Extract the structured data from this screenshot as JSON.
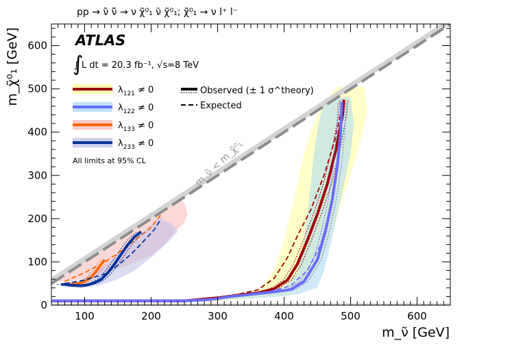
{
  "header": {
    "process": "pp → ν̃ ν̃̄ → ν χ̃⁰₁ ν̄ χ̃⁰₁;   χ̃⁰₁ → ν l⁺ l⁻"
  },
  "experiment": {
    "name": "ATLAS",
    "lumi_label": "∫ L dt = 20.3 fb⁻¹, √s=8 TeV"
  },
  "chart_data": {
    "type": "line",
    "title": "pp → ν̃ ν̃̄ → ν χ̃⁰₁ ν̄ χ̃⁰₁;   χ̃⁰₁ → ν l⁺ l⁻",
    "xlabel": "m_ν̃ [GeV]",
    "ylabel": "m_χ̃⁰₁ [GeV]",
    "xlim": [
      50,
      650
    ],
    "ylim": [
      0,
      650
    ],
    "x_ticks": [
      100,
      200,
      300,
      400,
      500,
      600
    ],
    "y_ticks": [
      0,
      100,
      200,
      300,
      400,
      500,
      600
    ],
    "x_tick_labels": [
      "100",
      "200",
      "300",
      "400",
      "500",
      "600"
    ],
    "y_tick_labels": [
      "0",
      "100",
      "200",
      "300",
      "400",
      "500",
      "600"
    ],
    "kinematic_label": "m_ν̃ < m_χ̃⁰₁",
    "diagonal": [
      [
        50,
        50
      ],
      [
        650,
        650
      ]
    ],
    "note": "All limits at 95% CL",
    "legend_style": [
      {
        "label": "Observed (± 1 σ^theory)"
      },
      {
        "label": "Expected"
      }
    ],
    "series": [
      {
        "name": "λ121 ≠ 0",
        "label_main": "λ",
        "label_sub": "121",
        "label_tail": " ≠ 0",
        "color": "#a00000",
        "band_color": "#ffff99",
        "observed": [
          [
            50,
            10
          ],
          [
            250,
            10
          ],
          [
            300,
            17
          ],
          [
            330,
            23
          ],
          [
            360,
            28
          ],
          [
            385,
            38
          ],
          [
            405,
            58
          ],
          [
            420,
            95
          ],
          [
            435,
            150
          ],
          [
            450,
            210
          ],
          [
            465,
            280
          ],
          [
            478,
            360
          ],
          [
            488,
            440
          ],
          [
            490,
            475
          ]
        ],
        "expected": [
          [
            50,
            10
          ],
          [
            250,
            10
          ],
          [
            300,
            18
          ],
          [
            330,
            25
          ],
          [
            360,
            35
          ],
          [
            385,
            62
          ],
          [
            405,
            110
          ],
          [
            420,
            160
          ],
          [
            440,
            220
          ],
          [
            460,
            300
          ],
          [
            476,
            380
          ],
          [
            486,
            450
          ],
          [
            490,
            475
          ]
        ],
        "band": [
          [
            50,
            10
          ],
          [
            300,
            14
          ],
          [
            340,
            24
          ],
          [
            365,
            40
          ],
          [
            385,
            80
          ],
          [
            400,
            150
          ],
          [
            415,
            240
          ],
          [
            430,
            350
          ],
          [
            445,
            420
          ],
          [
            460,
            470
          ],
          [
            480,
            505
          ],
          [
            520,
            505
          ],
          [
            525,
            450
          ],
          [
            515,
            380
          ],
          [
            500,
            300
          ],
          [
            485,
            230
          ],
          [
            470,
            160
          ],
          [
            455,
            100
          ],
          [
            440,
            60
          ],
          [
            420,
            35
          ],
          [
            400,
            25
          ],
          [
            350,
            15
          ],
          [
            300,
            10
          ],
          [
            50,
            5
          ]
        ]
      },
      {
        "name": "λ122 ≠ 0",
        "label_main": "λ",
        "label_sub": "122",
        "label_tail": " ≠ 0",
        "color": "#6b6bff",
        "band_color": "#a8d8f0",
        "observed": [
          [
            50,
            10
          ],
          [
            250,
            10
          ],
          [
            290,
            13
          ],
          [
            320,
            20
          ],
          [
            350,
            25
          ],
          [
            380,
            30
          ],
          [
            410,
            36
          ],
          [
            430,
            55
          ],
          [
            450,
            105
          ],
          [
            462,
            170
          ],
          [
            472,
            240
          ],
          [
            480,
            320
          ],
          [
            485,
            400
          ],
          [
            487,
            470
          ]
        ],
        "expected": [
          [
            50,
            10
          ],
          [
            250,
            10
          ],
          [
            300,
            16
          ],
          [
            340,
            24
          ],
          [
            380,
            32
          ],
          [
            410,
            45
          ],
          [
            435,
            80
          ],
          [
            455,
            140
          ],
          [
            468,
            210
          ],
          [
            478,
            290
          ],
          [
            484,
            380
          ],
          [
            487,
            470
          ]
        ],
        "band": [
          [
            50,
            10
          ],
          [
            300,
            15
          ],
          [
            360,
            26
          ],
          [
            400,
            40
          ],
          [
            420,
            75
          ],
          [
            430,
            150
          ],
          [
            438,
            250
          ],
          [
            445,
            350
          ],
          [
            452,
            420
          ],
          [
            460,
            470
          ],
          [
            475,
            480
          ],
          [
            500,
            480
          ],
          [
            505,
            420
          ],
          [
            500,
            350
          ],
          [
            490,
            280
          ],
          [
            480,
            210
          ],
          [
            470,
            140
          ],
          [
            460,
            80
          ],
          [
            450,
            40
          ],
          [
            420,
            25
          ],
          [
            380,
            18
          ],
          [
            300,
            12
          ],
          [
            50,
            6
          ]
        ]
      },
      {
        "name": "λ133 ≠ 0",
        "label_main": "λ",
        "label_sub": "133",
        "label_tail": " ≠ 0",
        "color": "#ff6600",
        "band_color": "#f8b8b8",
        "observed": [
          [
            70,
            50
          ],
          [
            80,
            48
          ],
          [
            90,
            50
          ],
          [
            100,
            55
          ],
          [
            110,
            65
          ],
          [
            118,
            80
          ],
          [
            125,
            95
          ],
          [
            130,
            105
          ]
        ],
        "expected": [
          [
            70,
            55
          ],
          [
            100,
            75
          ],
          [
            125,
            95
          ],
          [
            150,
            120
          ],
          [
            175,
            150
          ],
          [
            200,
            180
          ],
          [
            215,
            210
          ]
        ],
        "band": [
          [
            55,
            55
          ],
          [
            90,
            90
          ],
          [
            130,
            130
          ],
          [
            170,
            170
          ],
          [
            210,
            210
          ],
          [
            245,
            245
          ],
          [
            250,
            235
          ],
          [
            255,
            210
          ],
          [
            250,
            190
          ],
          [
            235,
            170
          ],
          [
            220,
            140
          ],
          [
            200,
            115
          ],
          [
            170,
            95
          ],
          [
            140,
            80
          ],
          [
            110,
            65
          ],
          [
            80,
            55
          ]
        ]
      },
      {
        "name": "λ233 ≠ 0",
        "label_main": "λ",
        "label_sub": "233",
        "label_tail": " ≠ 0",
        "color": "#003399",
        "band_color": "#c0c0ea",
        "observed": [
          [
            65,
            48
          ],
          [
            70,
            48
          ],
          [
            80,
            46
          ],
          [
            95,
            45
          ],
          [
            105,
            47
          ],
          [
            115,
            52
          ],
          [
            125,
            60
          ],
          [
            135,
            75
          ],
          [
            145,
            95
          ],
          [
            155,
            118
          ],
          [
            165,
            140
          ],
          [
            175,
            158
          ],
          [
            185,
            170
          ]
        ],
        "expected": [
          [
            70,
            50
          ],
          [
            100,
            58
          ],
          [
            130,
            72
          ],
          [
            150,
            92
          ],
          [
            170,
            118
          ],
          [
            190,
            150
          ],
          [
            205,
            175
          ],
          [
            215,
            200
          ]
        ],
        "band": [
          [
            65,
            50
          ],
          [
            90,
            55
          ],
          [
            130,
            90
          ],
          [
            160,
            130
          ],
          [
            185,
            160
          ],
          [
            195,
            180
          ],
          [
            210,
            200
          ],
          [
            230,
            190
          ],
          [
            240,
            170
          ],
          [
            225,
            145
          ],
          [
            200,
            110
          ],
          [
            175,
            80
          ],
          [
            150,
            60
          ],
          [
            120,
            45
          ],
          [
            95,
            40
          ],
          [
            70,
            42
          ]
        ]
      }
    ]
  }
}
